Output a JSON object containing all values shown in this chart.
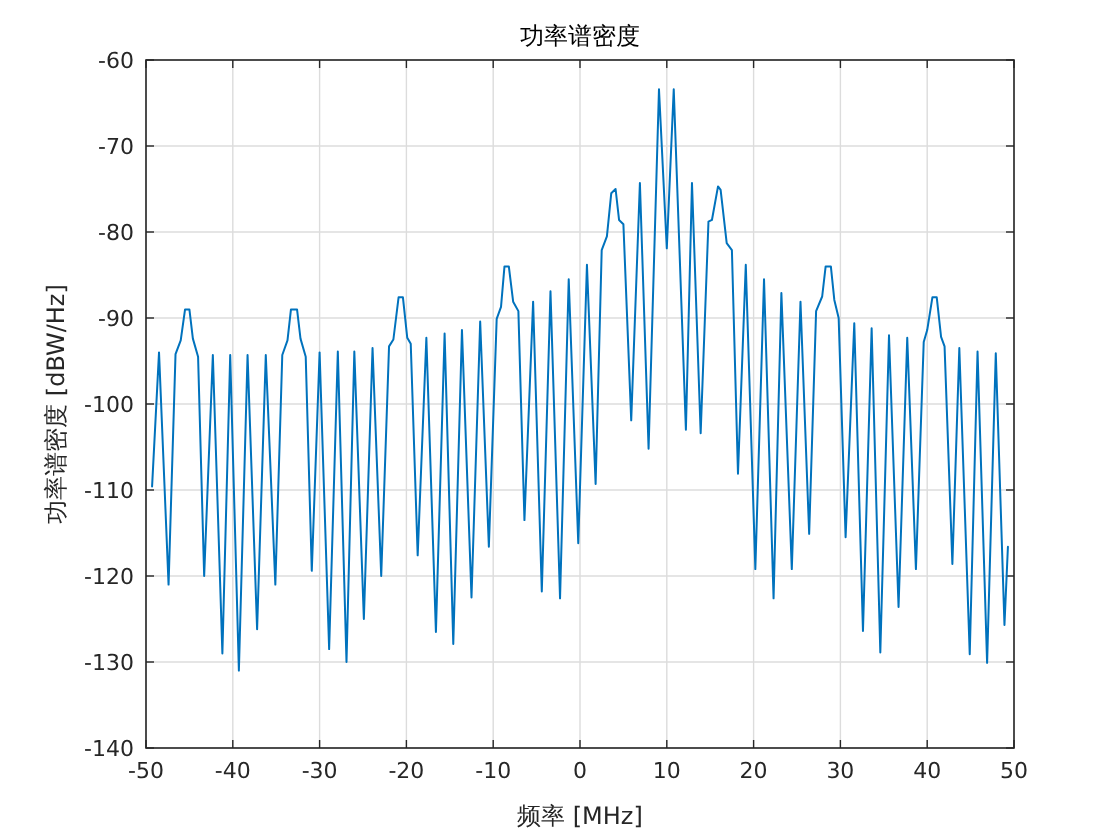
{
  "chart_data": {
    "type": "line",
    "title": "功率谱密度",
    "xlabel": "频率 [MHz]",
    "ylabel": "功率谱密度 [dBW/Hz]",
    "xlim": [
      -50,
      50
    ],
    "ylim": [
      -140,
      -60
    ],
    "xticks": [
      -50,
      -40,
      -30,
      -20,
      -10,
      0,
      10,
      20,
      30,
      40,
      50
    ],
    "yticks": [
      -140,
      -130,
      -120,
      -110,
      -100,
      -90,
      -80,
      -70,
      -60
    ],
    "grid": true,
    "line_style": "solid",
    "marker": "none",
    "series": [
      {
        "color": "#0072bd",
        "x": [
          -49.3,
          -48.5,
          -47.4,
          -46.6,
          -46.0,
          -45.5,
          -45.0,
          -44.6,
          -44.0,
          -43.3,
          -42.3,
          -41.2,
          -40.3,
          -39.3,
          -38.3,
          -37.2,
          -36.2,
          -35.1,
          -34.3,
          -33.7,
          -33.3,
          -32.6,
          -32.2,
          -31.6,
          -30.9,
          -30.0,
          -28.9,
          -27.9,
          -26.9,
          -26.0,
          -24.9,
          -23.9,
          -22.9,
          -22.0,
          -21.5,
          -20.9,
          -20.4,
          -19.9,
          -19.5,
          -18.7,
          -17.7,
          -16.6,
          -15.6,
          -14.6,
          -13.6,
          -12.5,
          -11.5,
          -10.5,
          -9.6,
          -9.1,
          -8.7,
          -8.2,
          -7.7,
          -7.1,
          -6.4,
          -5.4,
          -4.4,
          -3.4,
          -2.3,
          -1.3,
          -0.2,
          0.8,
          1.8,
          2.5,
          3.1,
          3.6,
          4.1,
          4.5,
          5.0,
          5.9,
          6.9,
          7.9,
          9.1,
          10.0,
          10.8,
          12.2,
          12.9,
          13.9,
          14.8,
          15.2,
          15.9,
          16.2,
          16.9,
          17.5,
          18.2,
          19.1,
          20.2,
          21.2,
          22.3,
          23.2,
          24.4,
          25.4,
          26.4,
          27.2,
          27.9,
          28.3,
          28.9,
          29.3,
          29.8,
          30.6,
          31.6,
          32.6,
          33.6,
          34.6,
          35.6,
          36.7,
          37.7,
          38.7,
          39.6,
          40.0,
          40.6,
          41.1,
          41.6,
          42.0,
          42.9,
          43.7,
          44.9,
          45.8,
          46.9,
          47.9,
          48.9,
          49.3
        ],
        "values": [
          -109.6,
          -94,
          -121,
          -94.2,
          -92.6,
          -89,
          -89,
          -92.4,
          -94.5,
          -120,
          -94.3,
          -129,
          -94.3,
          -131,
          -94.3,
          -126.2,
          -94.3,
          -121,
          -94.3,
          -92.6,
          -89,
          -89,
          -92.4,
          -94.5,
          -119.4,
          -94,
          -128.5,
          -93.9,
          -130,
          -93.9,
          -125,
          -93.5,
          -120,
          -93.3,
          -92.5,
          -87.6,
          -87.6,
          -92.3,
          -93,
          -117.6,
          -92.3,
          -126.5,
          -91.8,
          -127.9,
          -91.4,
          -122.5,
          -90.4,
          -116.6,
          -90.1,
          -88.7,
          -84,
          -84,
          -88.1,
          -89.2,
          -113.5,
          -88.1,
          -121.8,
          -86.9,
          -122.6,
          -85.5,
          -116.2,
          -83.8,
          -109.3,
          -82.1,
          -80.5,
          -75.5,
          -75,
          -78.6,
          -79.1,
          -101.9,
          -74.3,
          -105.2,
          -63.4,
          -81.9,
          -63.4,
          -103,
          -74.3,
          -103.4,
          -78.8,
          -78.6,
          -74.7,
          -75.1,
          -81.3,
          -82.1,
          -108.1,
          -83.8,
          -119.2,
          -85.5,
          -122.6,
          -87.1,
          -119.2,
          -88.1,
          -115.1,
          -89.2,
          -87.5,
          -84,
          -84,
          -87.9,
          -90,
          -115.5,
          -90.6,
          -126.4,
          -91.2,
          -128.9,
          -92,
          -123.6,
          -92.3,
          -119.2,
          -92.8,
          -91.4,
          -87.6,
          -87.6,
          -92.2,
          -93.3,
          -118.6,
          -93.5,
          -129.1,
          -93.9,
          -130.1,
          -94.1,
          -125.7,
          -116.6
        ]
      }
    ]
  }
}
